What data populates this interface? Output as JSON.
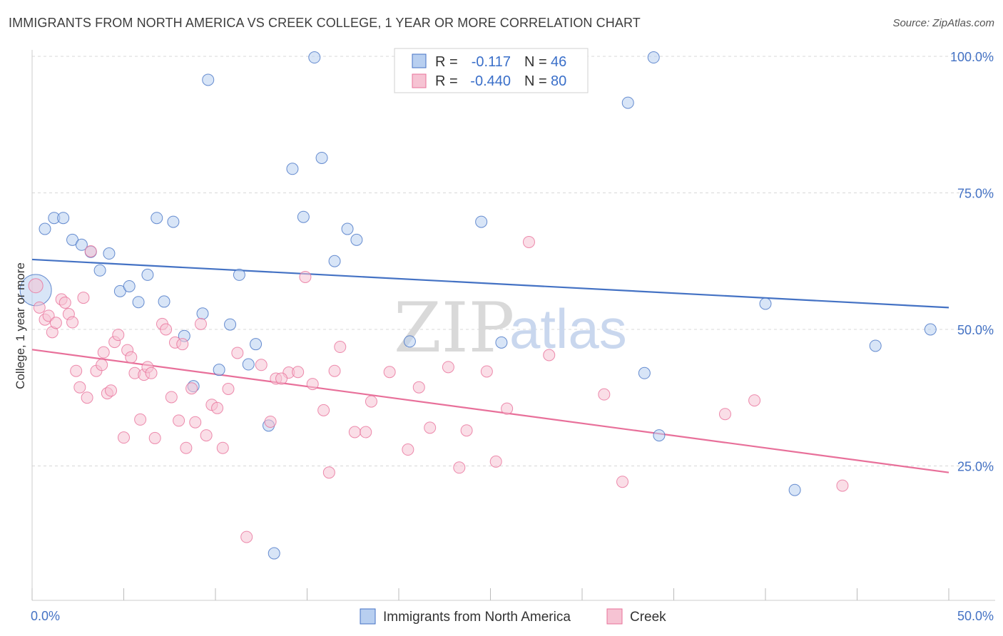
{
  "title": "IMMIGRANTS FROM NORTH AMERICA VS CREEK COLLEGE, 1 YEAR OR MORE CORRELATION CHART",
  "source": "Source: ZipAtlas.com",
  "watermark": {
    "zip": "ZIP",
    "atlas": "atlas"
  },
  "colors": {
    "blue": "#4472c4",
    "blue_fill": "#b8cff0",
    "pink": "#e8709a",
    "pink_fill": "#f6c3d3",
    "grid": "#d8d8d8"
  },
  "legend_box": {
    "rows": [
      {
        "r_label": "R =",
        "r_value": "-0.117",
        "n_label": "N =",
        "n_value": "46"
      },
      {
        "r_label": "R =",
        "r_value": "-0.440",
        "n_label": "N =",
        "n_value": "80"
      }
    ]
  },
  "bottom_legend": [
    "Immigrants from North America",
    "Creek"
  ],
  "chart_data": {
    "type": "scatter",
    "title": "IMMIGRANTS FROM NORTH AMERICA VS CREEK COLLEGE, 1 YEAR OR MORE CORRELATION CHART",
    "xlabel": "",
    "ylabel": "College, 1 year or more",
    "xlim": [
      0,
      50
    ],
    "ylim": [
      0,
      105
    ],
    "x_tick_labels": [
      "0.0%",
      "50.0%"
    ],
    "y_tick_labels": [
      "25.0%",
      "50.0%",
      "75.0%",
      "100.0%"
    ],
    "y_ticks": [
      25,
      50,
      75,
      100
    ],
    "grid": true,
    "series": [
      {
        "name": "Immigrants from North America",
        "r": -0.117,
        "n": 46,
        "trend": [
          [
            0,
            62.8
          ],
          [
            50,
            54.0
          ]
        ],
        "points": [
          [
            0.2,
            57.2
          ],
          [
            0.7,
            68.4
          ],
          [
            1.2,
            70.4
          ],
          [
            1.7,
            70.4
          ],
          [
            2.2,
            66.4
          ],
          [
            2.7,
            65.5
          ],
          [
            3.2,
            64.2
          ],
          [
            3.7,
            60.8
          ],
          [
            4.2,
            63.9
          ],
          [
            4.8,
            57.0
          ],
          [
            5.3,
            57.9
          ],
          [
            5.8,
            55.0
          ],
          [
            6.3,
            60.0
          ],
          [
            6.8,
            70.4
          ],
          [
            7.2,
            55.1
          ],
          [
            7.7,
            69.7
          ],
          [
            8.3,
            48.8
          ],
          [
            8.8,
            39.6
          ],
          [
            9.3,
            52.9
          ],
          [
            9.6,
            95.7
          ],
          [
            10.2,
            42.6
          ],
          [
            10.8,
            50.9
          ],
          [
            11.3,
            60.0
          ],
          [
            11.8,
            43.6
          ],
          [
            12.2,
            47.3
          ],
          [
            12.9,
            32.4
          ],
          [
            13.2,
            9.0
          ],
          [
            14.2,
            79.4
          ],
          [
            14.8,
            70.6
          ],
          [
            15.4,
            99.8
          ],
          [
            15.8,
            81.4
          ],
          [
            16.5,
            62.5
          ],
          [
            17.2,
            68.4
          ],
          [
            17.7,
            66.4
          ],
          [
            20.6,
            47.8
          ],
          [
            24.5,
            69.7
          ],
          [
            25.6,
            47.6
          ],
          [
            32.5,
            91.5
          ],
          [
            33.4,
            42.0
          ],
          [
            33.9,
            99.8
          ],
          [
            34.2,
            30.6
          ],
          [
            40.0,
            54.7
          ],
          [
            41.6,
            20.6
          ],
          [
            46.0,
            47.0
          ],
          [
            49.0,
            50.0
          ],
          [
            29.0,
            100.0
          ]
        ]
      },
      {
        "name": "Creek",
        "r": -0.44,
        "n": 80,
        "trend": [
          [
            0,
            46.3
          ],
          [
            50,
            23.8
          ]
        ],
        "points": [
          [
            0.2,
            58.0
          ],
          [
            0.4,
            54.0
          ],
          [
            0.7,
            51.8
          ],
          [
            0.9,
            52.5
          ],
          [
            1.1,
            49.5
          ],
          [
            1.3,
            51.2
          ],
          [
            1.6,
            55.5
          ],
          [
            1.8,
            54.9
          ],
          [
            2.0,
            52.8
          ],
          [
            2.2,
            51.3
          ],
          [
            2.4,
            42.4
          ],
          [
            2.6,
            39.4
          ],
          [
            2.8,
            55.8
          ],
          [
            3.0,
            37.5
          ],
          [
            3.2,
            64.3
          ],
          [
            3.5,
            42.4
          ],
          [
            3.8,
            43.5
          ],
          [
            3.9,
            45.8
          ],
          [
            4.1,
            38.3
          ],
          [
            4.3,
            38.8
          ],
          [
            4.5,
            47.7
          ],
          [
            4.7,
            49.0
          ],
          [
            5.0,
            30.2
          ],
          [
            5.2,
            46.2
          ],
          [
            5.4,
            44.9
          ],
          [
            5.6,
            42.0
          ],
          [
            5.9,
            33.5
          ],
          [
            6.1,
            41.7
          ],
          [
            6.3,
            43.1
          ],
          [
            6.5,
            42.0
          ],
          [
            6.7,
            30.1
          ],
          [
            7.1,
            51.0
          ],
          [
            7.3,
            50.0
          ],
          [
            7.6,
            37.6
          ],
          [
            7.8,
            47.6
          ],
          [
            8.0,
            33.3
          ],
          [
            8.2,
            47.3
          ],
          [
            8.4,
            28.3
          ],
          [
            8.7,
            39.2
          ],
          [
            8.9,
            33.0
          ],
          [
            9.2,
            51.0
          ],
          [
            9.5,
            30.6
          ],
          [
            9.8,
            36.2
          ],
          [
            10.1,
            35.6
          ],
          [
            10.4,
            28.3
          ],
          [
            10.7,
            39.1
          ],
          [
            11.2,
            45.7
          ],
          [
            11.7,
            12.0
          ],
          [
            12.5,
            43.5
          ],
          [
            13.0,
            33.1
          ],
          [
            13.3,
            41.0
          ],
          [
            14.0,
            42.1
          ],
          [
            14.5,
            42.2
          ],
          [
            14.9,
            59.6
          ],
          [
            15.3,
            40.0
          ],
          [
            15.9,
            35.2
          ],
          [
            16.2,
            23.8
          ],
          [
            16.5,
            42.4
          ],
          [
            16.8,
            46.8
          ],
          [
            17.6,
            31.2
          ],
          [
            18.2,
            31.2
          ],
          [
            18.5,
            36.8
          ],
          [
            19.5,
            42.2
          ],
          [
            20.5,
            28.0
          ],
          [
            21.1,
            39.4
          ],
          [
            21.7,
            32.0
          ],
          [
            22.7,
            43.1
          ],
          [
            23.3,
            24.7
          ],
          [
            23.7,
            31.5
          ],
          [
            24.8,
            42.3
          ],
          [
            25.3,
            25.8
          ],
          [
            25.9,
            35.5
          ],
          [
            27.1,
            66.0
          ],
          [
            28.2,
            45.3
          ],
          [
            31.2,
            38.1
          ],
          [
            32.2,
            22.1
          ],
          [
            37.8,
            34.5
          ],
          [
            39.4,
            37.0
          ],
          [
            44.2,
            21.4
          ],
          [
            13.6,
            41.0
          ]
        ]
      }
    ]
  }
}
